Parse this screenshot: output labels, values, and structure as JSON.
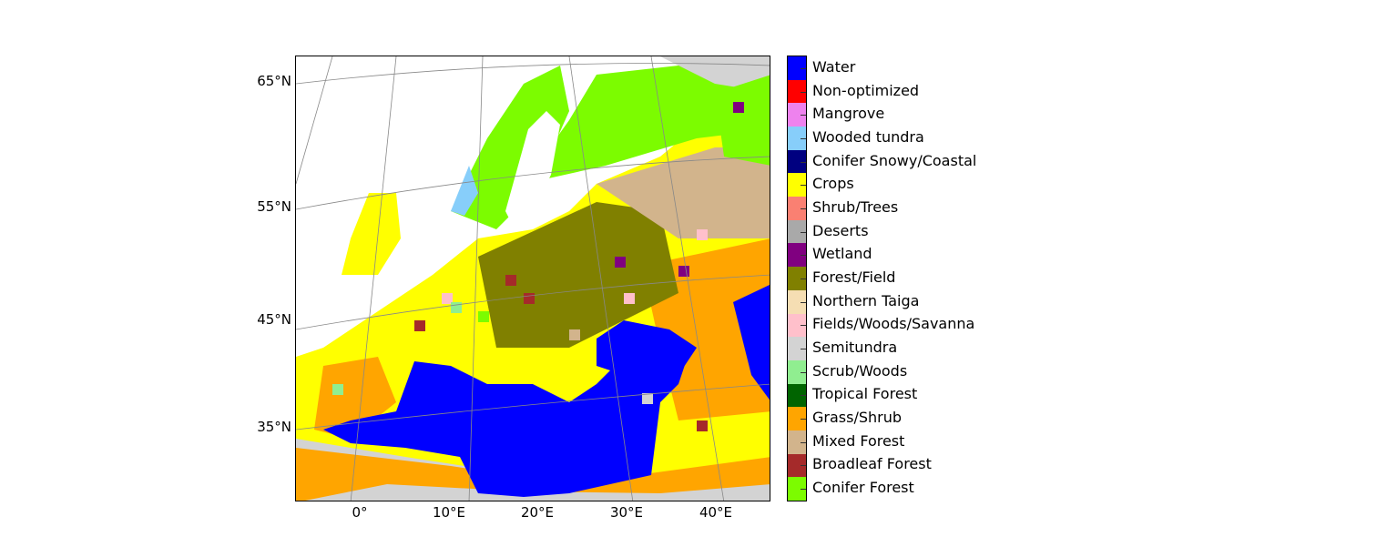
{
  "map": {
    "lat_labels": [
      "65°N",
      "55°N",
      "45°N",
      "35°N"
    ],
    "lon_labels": [
      "0°",
      "10°E",
      "20°E",
      "30°E",
      "40°E"
    ]
  },
  "legend": {
    "items": [
      {
        "label": "Water",
        "color": "#0000ff"
      },
      {
        "label": "Non-optimized",
        "color": "#ff0000"
      },
      {
        "label": "Mangrove",
        "color": "#ee82ee"
      },
      {
        "label": "Wooded tundra",
        "color": "#87cefa"
      },
      {
        "label": "Conifer Snowy/Coastal",
        "color": "#000080"
      },
      {
        "label": "Crops",
        "color": "#ffff00"
      },
      {
        "label": "Shrub/Trees",
        "color": "#fa8072"
      },
      {
        "label": "Deserts",
        "color": "#a9a9a9"
      },
      {
        "label": "Wetland",
        "color": "#800080"
      },
      {
        "label": "Forest/Field",
        "color": "#808000"
      },
      {
        "label": "Northern Taiga",
        "color": "#f5deb3"
      },
      {
        "label": "Fields/Woods/Savanna",
        "color": "#ffc0cb"
      },
      {
        "label": "Semitundra",
        "color": "#d3d3d3"
      },
      {
        "label": "Scrub/Woods",
        "color": "#90ee90"
      },
      {
        "label": "Tropical Forest",
        "color": "#006400"
      },
      {
        "label": "Grass/Shrub",
        "color": "#ffa500"
      },
      {
        "label": "Mixed Forest",
        "color": "#d2b48c"
      },
      {
        "label": "Broadleaf Forest",
        "color": "#a52a2a"
      },
      {
        "label": "Conifer Forest",
        "color": "#7cfc00"
      }
    ]
  }
}
